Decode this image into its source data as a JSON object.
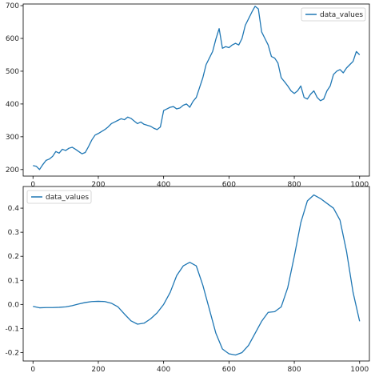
{
  "chart_data": [
    {
      "type": "line",
      "title": "",
      "xlabel": "",
      "ylabel": "",
      "xlim": [
        -30,
        1030
      ],
      "ylim": [
        180,
        705
      ],
      "xticks": [
        0,
        200,
        400,
        600,
        800,
        1000
      ],
      "yticks": [
        200,
        300,
        400,
        500,
        600,
        700
      ],
      "legend_placement": "top-right",
      "grid": false,
      "series": [
        {
          "name": "data_values",
          "color": "#1f77b4",
          "x": [
            0,
            10,
            20,
            30,
            40,
            50,
            60,
            70,
            80,
            90,
            100,
            110,
            120,
            130,
            140,
            150,
            160,
            170,
            180,
            190,
            200,
            210,
            220,
            230,
            240,
            250,
            260,
            270,
            280,
            290,
            300,
            310,
            320,
            330,
            340,
            350,
            360,
            370,
            380,
            390,
            400,
            410,
            420,
            430,
            440,
            450,
            460,
            470,
            480,
            490,
            500,
            510,
            520,
            530,
            540,
            550,
            560,
            570,
            580,
            590,
            600,
            610,
            620,
            630,
            640,
            650,
            660,
            670,
            680,
            690,
            700,
            710,
            720,
            730,
            740,
            750,
            760,
            770,
            780,
            790,
            800,
            810,
            820,
            830,
            840,
            850,
            860,
            870,
            880,
            890,
            900,
            910,
            920,
            930,
            940,
            950,
            960,
            970,
            980,
            990,
            1000
          ],
          "y": [
            212,
            210,
            200,
            215,
            228,
            232,
            240,
            255,
            250,
            262,
            258,
            265,
            268,
            262,
            255,
            248,
            252,
            270,
            290,
            305,
            310,
            316,
            322,
            330,
            340,
            345,
            350,
            355,
            352,
            360,
            356,
            348,
            340,
            345,
            338,
            335,
            332,
            326,
            322,
            330,
            380,
            385,
            390,
            392,
            385,
            388,
            396,
            400,
            390,
            408,
            420,
            450,
            480,
            520,
            540,
            560,
            598,
            630,
            570,
            575,
            572,
            580,
            585,
            580,
            600,
            640,
            660,
            680,
            698,
            690,
            620,
            600,
            580,
            545,
            540,
            525,
            480,
            468,
            455,
            440,
            432,
            440,
            455,
            420,
            415,
            430,
            440,
            420,
            410,
            415,
            440,
            455,
            490,
            500,
            505,
            495,
            510,
            520,
            530,
            560,
            550
          ]
        }
      ]
    },
    {
      "type": "line",
      "title": "",
      "xlabel": "",
      "ylabel": "",
      "xlim": [
        -30,
        1030
      ],
      "ylim": [
        -0.235,
        0.49
      ],
      "xticks": [
        0,
        200,
        400,
        600,
        800,
        1000
      ],
      "yticks": [
        -0.2,
        -0.1,
        0.0,
        0.1,
        0.2,
        0.3,
        0.4
      ],
      "legend_placement": "top-left",
      "grid": false,
      "series": [
        {
          "name": "data_values",
          "color": "#1f77b4",
          "x": [
            0,
            20,
            40,
            60,
            80,
            100,
            120,
            140,
            160,
            180,
            200,
            220,
            240,
            260,
            280,
            300,
            320,
            340,
            360,
            380,
            400,
            420,
            440,
            460,
            480,
            500,
            520,
            540,
            560,
            580,
            600,
            620,
            640,
            660,
            680,
            700,
            720,
            740,
            760,
            780,
            800,
            820,
            840,
            860,
            880,
            900,
            920,
            940,
            960,
            980,
            1000
          ],
          "y": [
            -0.008,
            -0.014,
            -0.013,
            -0.013,
            -0.012,
            -0.01,
            -0.005,
            0.002,
            0.008,
            0.012,
            0.013,
            0.012,
            0.005,
            -0.01,
            -0.04,
            -0.068,
            -0.082,
            -0.078,
            -0.06,
            -0.035,
            0.0,
            0.05,
            0.12,
            0.16,
            0.175,
            0.16,
            0.08,
            -0.02,
            -0.12,
            -0.185,
            -0.205,
            -0.21,
            -0.2,
            -0.17,
            -0.12,
            -0.07,
            -0.033,
            -0.03,
            -0.01,
            0.07,
            0.2,
            0.34,
            0.43,
            0.455,
            0.44,
            0.42,
            0.4,
            0.35,
            0.22,
            0.05,
            -0.07
          ]
        }
      ]
    }
  ]
}
